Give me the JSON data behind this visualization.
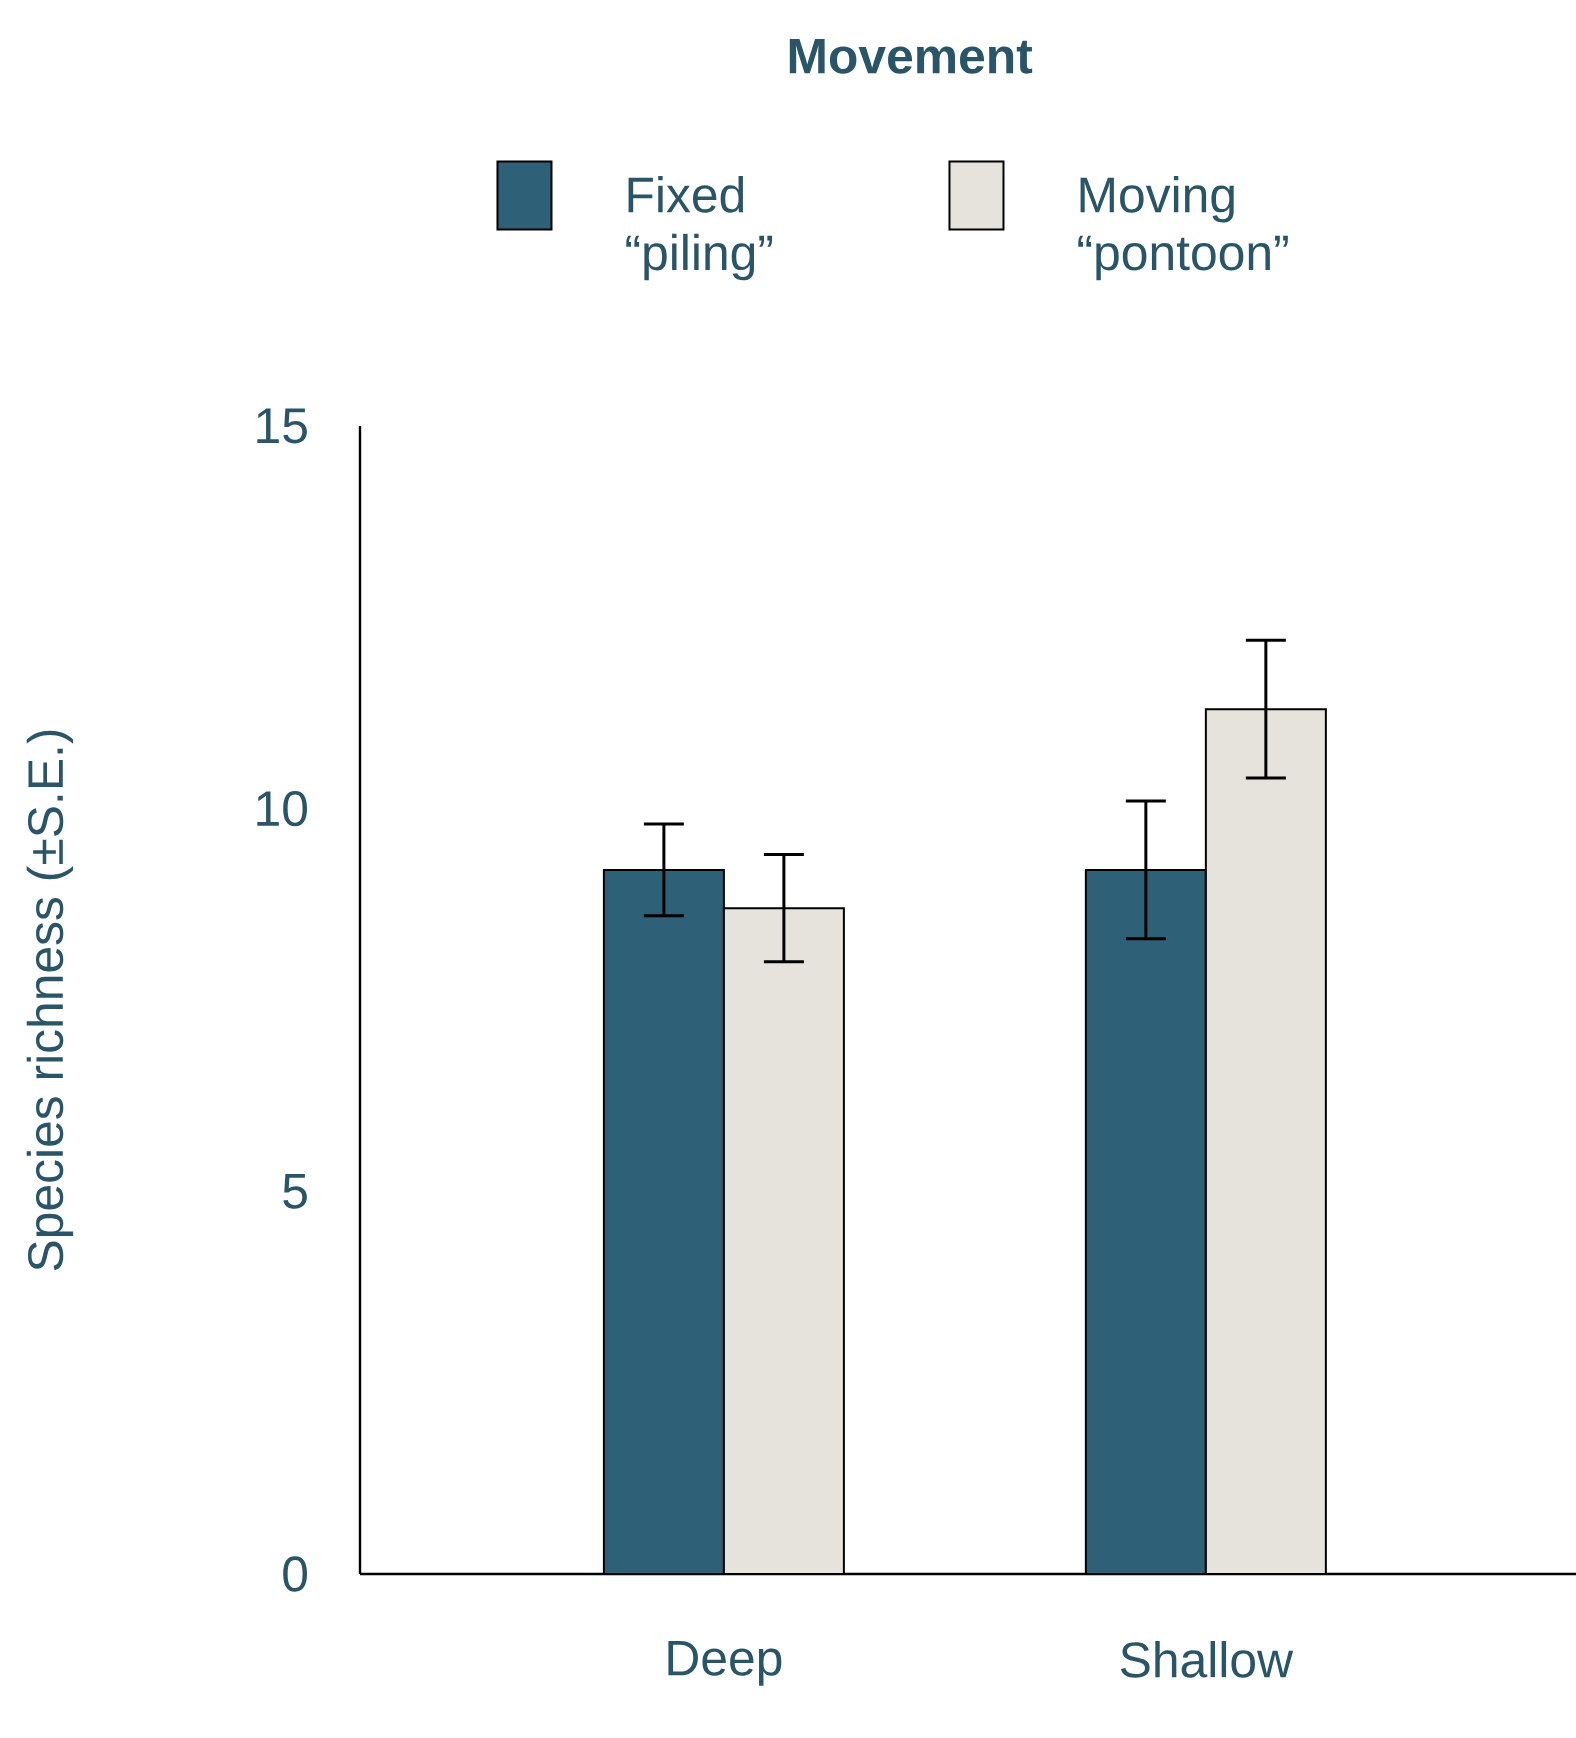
{
  "chart_data": {
    "type": "bar",
    "legend_title": "Movement",
    "ylabel": "Species richness (±S.E.)",
    "categories": [
      "Deep",
      "Shallow"
    ],
    "series": [
      {
        "name": "Fixed “piling”",
        "color": "#2e6177",
        "values": [
          9.2,
          9.2
        ],
        "errors": [
          0.6,
          0.9
        ]
      },
      {
        "name": "Moving “pontoon”",
        "color": "#e6e3dc",
        "values": [
          8.7,
          11.3
        ],
        "errors": [
          0.7,
          0.9
        ]
      }
    ],
    "ylim": [
      0,
      15
    ],
    "yticks": [
      0,
      5,
      10,
      15
    ],
    "legend": "top"
  }
}
